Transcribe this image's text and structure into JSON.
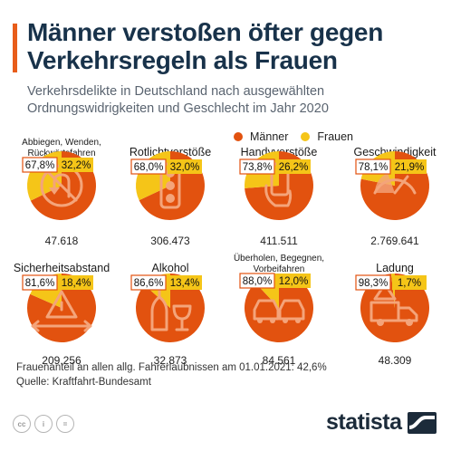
{
  "title": "Männer verstoßen öfter gegen Verkehrsregeln als Frauen",
  "subtitle": "Verkehrsdelikte in Deutschland nach ausgewählten Ordnungswidrigkeiten und Geschlecht im Jahr 2020",
  "legend": {
    "men": "Männer",
    "women": "Frauen"
  },
  "colors": {
    "men": "#e2520f",
    "women": "#f5c518",
    "icon": "#f4a47a",
    "title": "#18324a"
  },
  "chart_data": {
    "type": "pie",
    "series": [
      {
        "name": "Männer"
      },
      {
        "name": "Frauen"
      }
    ],
    "items": [
      {
        "label": "Abbiegen, Wenden, Rückwärtsfahren",
        "men": 67.8,
        "women": 32.2,
        "men_label": "67,8%",
        "women_label": "32,2%",
        "total": "47.618",
        "icon": "no-turn-icon"
      },
      {
        "label": "Rotlichtverstöße",
        "men": 68.0,
        "women": 32.0,
        "men_label": "68,0%",
        "women_label": "32,0%",
        "total": "306.473",
        "icon": "traffic-light-icon"
      },
      {
        "label": "Handyverstöße",
        "men": 73.8,
        "women": 26.2,
        "men_label": "73,8%",
        "women_label": "26,2%",
        "total": "411.511",
        "icon": "phone-in-hand-icon"
      },
      {
        "label": "Geschwindigkeit",
        "men": 78.1,
        "women": 21.9,
        "men_label": "78,1%",
        "women_label": "21,9%",
        "total": "2.769.641",
        "icon": "speedometer-icon"
      },
      {
        "label": "Sicherheitsabstand",
        "men": 81.6,
        "women": 18.4,
        "men_label": "81,6%",
        "women_label": "18,4%",
        "total": "209.256",
        "icon": "distance-warning-icon"
      },
      {
        "label": "Alkohol",
        "men": 86.6,
        "women": 13.4,
        "men_label": "86,6%",
        "women_label": "13,4%",
        "total": "32.873",
        "icon": "bottle-glass-icon"
      },
      {
        "label": "Überholen, Begegnen, Vorbeifahren",
        "men": 88.0,
        "women": 12.0,
        "men_label": "88,0%",
        "women_label": "12,0%",
        "total": "84.561",
        "icon": "two-cars-icon"
      },
      {
        "label": "Ladung",
        "men": 98.3,
        "women": 1.7,
        "men_label": "98,3%",
        "women_label": "1,7%",
        "total": "48.309",
        "icon": "truck-warning-icon"
      }
    ]
  },
  "footnote": "Frauenanteil an allen allg. Fahrerlaubnissen am 01.01.2021: 42,6%",
  "source": "Quelle: Kraftfahrt-Bundesamt",
  "brand": "statista",
  "license_icons": [
    "cc-icon",
    "attribution-icon",
    "no-derivatives-icon"
  ]
}
